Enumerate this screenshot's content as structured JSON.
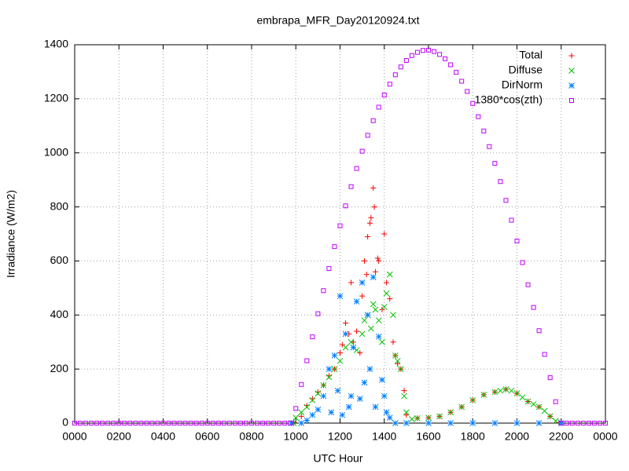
{
  "chart_data": {
    "type": "scatter",
    "title": "embrapa_MFR_Day20120924.txt",
    "xlabel": "UTC Hour",
    "ylabel": "Irradiance (W/m2)",
    "xlim": [
      0,
      24
    ],
    "ylim": [
      0,
      1400
    ],
    "xticks": [
      {
        "value": 0,
        "label": "0000"
      },
      {
        "value": 2,
        "label": "0200"
      },
      {
        "value": 4,
        "label": "0400"
      },
      {
        "value": 6,
        "label": "0600"
      },
      {
        "value": 8,
        "label": "0800"
      },
      {
        "value": 10,
        "label": "1000"
      },
      {
        "value": 12,
        "label": "1200"
      },
      {
        "value": 14,
        "label": "1400"
      },
      {
        "value": 16,
        "label": "1600"
      },
      {
        "value": 18,
        "label": "1800"
      },
      {
        "value": 20,
        "label": "2000"
      },
      {
        "value": 22,
        "label": "2200"
      },
      {
        "value": 24,
        "label": "0000"
      }
    ],
    "yticks": [
      0,
      200,
      400,
      600,
      800,
      1000,
      1200,
      1400
    ],
    "grid": true,
    "legend": "upper right",
    "series": [
      {
        "name": "Total",
        "color": "#ff0000",
        "marker": "plus",
        "x": [
          9.9,
          10.25,
          10.5,
          10.75,
          11,
          11.25,
          11.5,
          11.75,
          12,
          12.1,
          12.25,
          12.4,
          12.5,
          12.6,
          12.75,
          12.9,
          13,
          13.1,
          13.2,
          13.25,
          13.35,
          13.4,
          13.5,
          13.55,
          13.6,
          13.7,
          13.75,
          13.9,
          14,
          14.1,
          14.25,
          14.4,
          14.5,
          14.6,
          14.75,
          14.9,
          15,
          15.5,
          16,
          16.5,
          17,
          17.5,
          18,
          18.5,
          19,
          19.5,
          20,
          20.5,
          21,
          21.5,
          21.9
        ],
        "values": [
          5,
          25,
          65,
          90,
          115,
          140,
          175,
          200,
          260,
          290,
          370,
          330,
          520,
          300,
          340,
          260,
          470,
          600,
          550,
          690,
          740,
          760,
          870,
          800,
          560,
          610,
          600,
          420,
          700,
          520,
          460,
          300,
          250,
          220,
          200,
          120,
          30,
          18,
          20,
          25,
          40,
          60,
          85,
          105,
          115,
          125,
          110,
          80,
          60,
          25,
          3
        ]
      },
      {
        "name": "Diffuse",
        "color": "#00c000",
        "marker": "cross",
        "x": [
          9.9,
          10,
          10.25,
          10.5,
          10.75,
          11,
          11.25,
          11.5,
          11.75,
          12,
          12.25,
          12.5,
          12.75,
          13,
          13.1,
          13.25,
          13.4,
          13.5,
          13.6,
          13.75,
          13.9,
          14,
          14.1,
          14.25,
          14.4,
          14.5,
          14.6,
          14.75,
          14.9,
          15,
          15.25,
          15.5,
          16,
          16.5,
          17,
          17.5,
          18,
          18.5,
          19,
          19.25,
          19.5,
          19.75,
          20,
          20.25,
          20.5,
          20.75,
          21,
          21.25,
          21.5,
          21.75,
          22
        ],
        "values": [
          0,
          20,
          40,
          60,
          85,
          110,
          140,
          170,
          200,
          230,
          280,
          300,
          270,
          330,
          380,
          400,
          350,
          440,
          420,
          380,
          300,
          430,
          480,
          550,
          400,
          250,
          230,
          200,
          100,
          40,
          15,
          18,
          20,
          25,
          40,
          60,
          85,
          105,
          115,
          120,
          125,
          120,
          110,
          95,
          80,
          70,
          60,
          45,
          25,
          8,
          0
        ]
      },
      {
        "name": "DirNorm",
        "color": "#0080ff",
        "marker": "star",
        "x": [
          9.8,
          10.25,
          10.5,
          10.75,
          11,
          11.25,
          11.5,
          11.6,
          11.75,
          11.9,
          12,
          12.1,
          12.25,
          12.4,
          12.5,
          12.6,
          12.75,
          12.9,
          13,
          13.1,
          13.25,
          13.35,
          13.5,
          13.6,
          13.75,
          13.9,
          14,
          14.1,
          14.25,
          14.5,
          15,
          16,
          17,
          18,
          19,
          20,
          21,
          22
        ],
        "values": [
          0,
          0,
          10,
          30,
          50,
          100,
          200,
          40,
          250,
          120,
          470,
          30,
          330,
          60,
          100,
          280,
          450,
          90,
          520,
          150,
          400,
          200,
          540,
          60,
          320,
          160,
          100,
          40,
          20,
          0,
          0,
          0,
          0,
          0,
          0,
          0,
          0,
          0
        ]
      },
      {
        "name": "1380*cos(zth)",
        "color": "#c000ff",
        "marker": "square",
        "x": [
          0,
          0.25,
          0.5,
          0.75,
          1,
          1.25,
          1.5,
          1.75,
          2,
          2.25,
          2.5,
          2.75,
          3,
          3.25,
          3.5,
          3.75,
          4,
          4.25,
          4.5,
          4.75,
          5,
          5.25,
          5.5,
          5.75,
          6,
          6.25,
          6.5,
          6.75,
          7,
          7.25,
          7.5,
          7.75,
          8,
          8.25,
          8.5,
          8.75,
          9,
          9.25,
          9.5,
          9.75,
          10,
          10.25,
          10.5,
          10.75,
          11,
          11.25,
          11.5,
          11.75,
          12,
          12.25,
          12.5,
          12.75,
          13,
          13.25,
          13.5,
          13.75,
          14,
          14.25,
          14.5,
          14.75,
          15,
          15.25,
          15.5,
          15.75,
          16,
          16.25,
          16.5,
          16.75,
          17,
          17.25,
          17.5,
          17.75,
          18,
          18.25,
          18.5,
          18.75,
          19,
          19.25,
          19.5,
          19.75,
          20,
          20.25,
          20.5,
          20.75,
          21,
          21.25,
          21.5,
          21.75,
          22,
          22.25,
          22.5,
          22.75,
          23,
          23.25,
          23.5,
          23.75,
          24
        ],
        "values": [
          0,
          0,
          0,
          0,
          0,
          0,
          0,
          0,
          0,
          0,
          0,
          0,
          0,
          0,
          0,
          0,
          0,
          0,
          0,
          0,
          0,
          0,
          0,
          0,
          0,
          0,
          0,
          0,
          0,
          0,
          0,
          0,
          0,
          0,
          0,
          0,
          0,
          0,
          0,
          0,
          54,
          143,
          231,
          319,
          405,
          490,
          572,
          653,
          730,
          804,
          875,
          942,
          1006,
          1065,
          1119,
          1169,
          1214,
          1254,
          1289,
          1318,
          1342,
          1360,
          1372,
          1379,
          1380,
          1375,
          1364,
          1348,
          1326,
          1298,
          1265,
          1227,
          1183,
          1134,
          1081,
          1023,
          961,
          894,
          824,
          751,
          674,
          594,
          512,
          428,
          342,
          254,
          168,
          79,
          0,
          0,
          0,
          0,
          0,
          0,
          0,
          0,
          0
        ]
      }
    ]
  }
}
